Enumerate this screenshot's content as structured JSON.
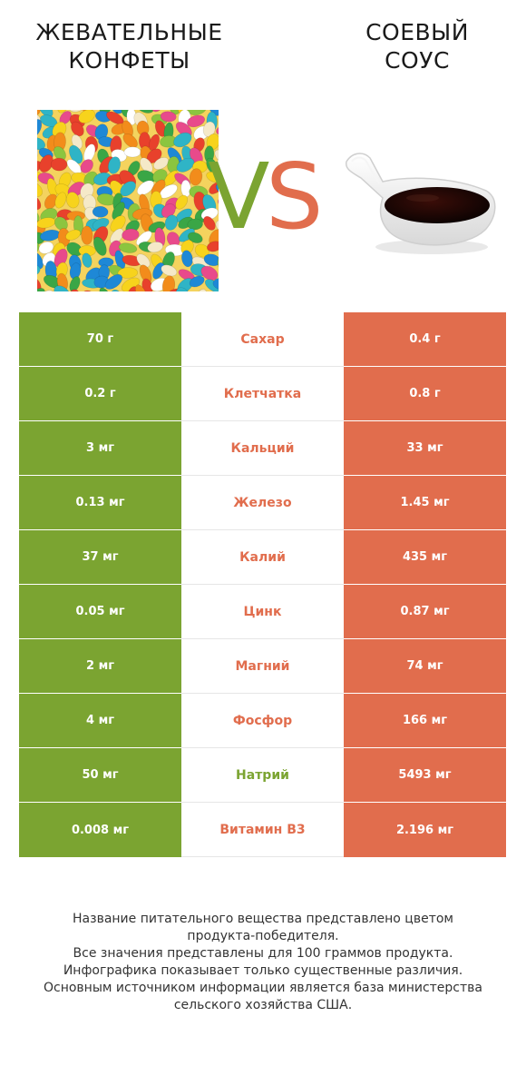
{
  "header": {
    "left_title": [
      "ЖЕВАТЕЛЬНЫЕ",
      "КОНФЕТЫ"
    ],
    "right_title": [
      "СОЕВЫЙ",
      "СОУС"
    ],
    "vs": "VS"
  },
  "colors": {
    "left": "#7ba431",
    "right": "#e16d4d"
  },
  "rows": [
    {
      "left": "70 г",
      "nutrient": "Сахар",
      "right": "0.4 г",
      "winner": "right"
    },
    {
      "left": "0.2 г",
      "nutrient": "Клетчатка",
      "right": "0.8 г",
      "winner": "right"
    },
    {
      "left": "3 мг",
      "nutrient": "Кальций",
      "right": "33 мг",
      "winner": "right"
    },
    {
      "left": "0.13 мг",
      "nutrient": "Железо",
      "right": "1.45 мг",
      "winner": "right"
    },
    {
      "left": "37 мг",
      "nutrient": "Калий",
      "right": "435 мг",
      "winner": "right"
    },
    {
      "left": "0.05 мг",
      "nutrient": "Цинк",
      "right": "0.87 мг",
      "winner": "right"
    },
    {
      "left": "2 мг",
      "nutrient": "Магний",
      "right": "74 мг",
      "winner": "right"
    },
    {
      "left": "4 мг",
      "nutrient": "Фосфор",
      "right": "166 мг",
      "winner": "right"
    },
    {
      "left": "50 мг",
      "nutrient": "Натрий",
      "right": "5493 мг",
      "winner": "left"
    },
    {
      "left": "0.008 мг",
      "nutrient": "Витамин B3",
      "right": "2.196 мг",
      "winner": "right"
    }
  ],
  "footnote": [
    "Название питательного вещества представлено цветом",
    "продукта-победителя.",
    "Все значения представлены для 100 граммов продукта.",
    "Инфографика показывает только существенные различия.",
    "Основным источником информации является база министерства",
    "сельского хозяйства США."
  ]
}
